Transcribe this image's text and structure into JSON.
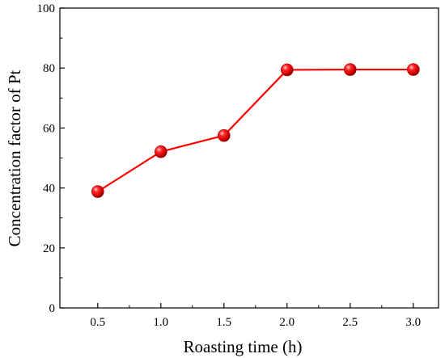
{
  "chart_data": {
    "type": "line",
    "title": "",
    "xlabel": "Roasting time (h)",
    "ylabel": "Concentration factor of Pt",
    "xlim": [
      0.2,
      3.2
    ],
    "ylim": [
      0,
      100
    ],
    "x_ticks": [
      "0.5",
      "1.0",
      "1.5",
      "2.0",
      "2.5",
      "3.0"
    ],
    "y_ticks": [
      "0",
      "20",
      "40",
      "60",
      "80",
      "100"
    ],
    "grid": false,
    "legend": "none",
    "series": [
      {
        "color": "#ff0000",
        "marker": "sphere",
        "x": [
          0.5,
          1.0,
          1.5,
          2.0,
          2.5,
          3.0
        ],
        "y": [
          38.8,
          52.1,
          57.5,
          79.4,
          79.5,
          79.5
        ]
      }
    ]
  }
}
